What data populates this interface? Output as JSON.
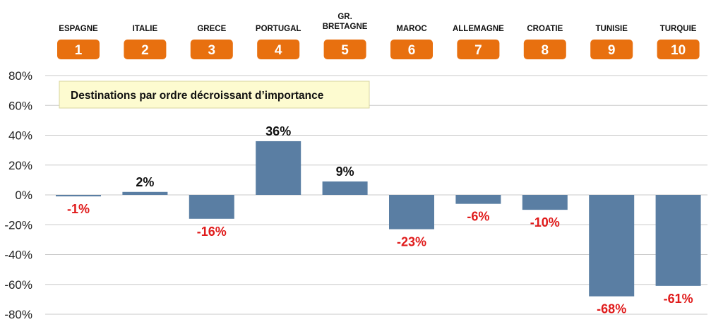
{
  "chart_data": {
    "type": "bar",
    "categories": [
      "ESPAGNE",
      "ITALIE",
      "GRECE",
      "PORTUGAL",
      "GR. BRETAGNE",
      "MAROC",
      "ALLEMAGNE",
      "CROATIE",
      "TUNISIE",
      "TURQUIE"
    ],
    "ranks": [
      "1",
      "2",
      "3",
      "4",
      "5",
      "6",
      "7",
      "8",
      "9",
      "10"
    ],
    "values": [
      -1,
      2,
      -16,
      36,
      9,
      -23,
      -6,
      -10,
      -68,
      -61
    ],
    "value_labels": [
      "-1%",
      "2%",
      "-16%",
      "36%",
      "9%",
      "-23%",
      "-6%",
      "-10%",
      "-68%",
      "-61%"
    ],
    "annotation": "Destinations par ordre décroissant d’importance",
    "ylim": [
      -80,
      80
    ],
    "yticks": [
      80,
      60,
      40,
      20,
      0,
      -20,
      -40,
      -60,
      -80
    ],
    "ytick_labels": [
      "80%",
      "60%",
      "40%",
      "20%",
      "0%",
      "-20%",
      "-40%",
      "-60%",
      "-80%"
    ],
    "grid": true,
    "colors": {
      "bar": "#5a7ea3",
      "badge": "#e8700f",
      "positive_label": "#111111",
      "negative_label": "#e01b1b",
      "grid": "#c8c8c8",
      "note_fill": "#fdfbd0"
    }
  }
}
